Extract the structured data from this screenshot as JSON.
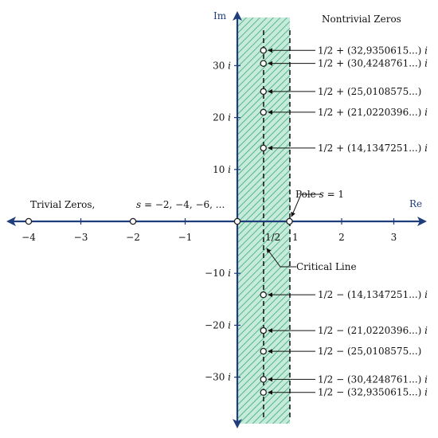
{
  "axes": {
    "real_label": "Re",
    "imag_label": "Im",
    "real_ticks": [
      {
        "value": -4,
        "label": "−4"
      },
      {
        "value": -3,
        "label": "−3"
      },
      {
        "value": -2,
        "label": "−2"
      },
      {
        "value": -1,
        "label": "−1"
      },
      {
        "value": 2,
        "label": "2"
      },
      {
        "value": 3,
        "label": "3"
      }
    ],
    "half_label": "1/2",
    "one_label": "1",
    "imag_ticks": [
      {
        "value": 30,
        "label": "30 i"
      },
      {
        "value": 20,
        "label": "20 i"
      },
      {
        "value": 10,
        "label": "10 i"
      },
      {
        "value": -10,
        "label": "−10 i"
      },
      {
        "value": -20,
        "label": "−20 i"
      },
      {
        "value": -30,
        "label": "−30 i"
      }
    ]
  },
  "labels": {
    "nontrivial_heading": "Nontrivial Zeros",
    "trivial_heading": "Trivial Zeros,",
    "trivial_formula": "s = −2, −4, −6, ...",
    "pole": "Pole s = 1",
    "critical_line": "Critical Line"
  },
  "trivial_zeros": [
    -2,
    -4
  ],
  "nontrivial_zeros": [
    {
      "im": 32.9350615,
      "label": "1/2 + (32,9350615...) i"
    },
    {
      "im": 30.4248761,
      "label": "1/2 + (30,4248761...) i"
    },
    {
      "im": 25.0108575,
      "label": "1/2 + (25,0108575...)"
    },
    {
      "im": 21.0220396,
      "label": "1/2 + (21,0220396...) i"
    },
    {
      "im": 14.1347251,
      "label": "1/2 + (14,1347251...) i"
    },
    {
      "im": -14.1347251,
      "label": "1/2 − (14,1347251...) i"
    },
    {
      "im": -21.0220396,
      "label": "1/2 − (21,0220396...) i"
    },
    {
      "im": -25.0108575,
      "label": "1/2 − (25,0108575...)"
    },
    {
      "im": -30.4248761,
      "label": "1/2 − (30,4248761...) i"
    },
    {
      "im": -32.9350615,
      "label": "1/2 − (32,9350615...) i"
    }
  ],
  "colors": {
    "axis": "#1f3d7a",
    "strip_fill": "#c6eadb",
    "strip_hatch": "#3aaa74",
    "dashed_line": "#000000",
    "zero_marker_stroke": "#222222"
  }
}
